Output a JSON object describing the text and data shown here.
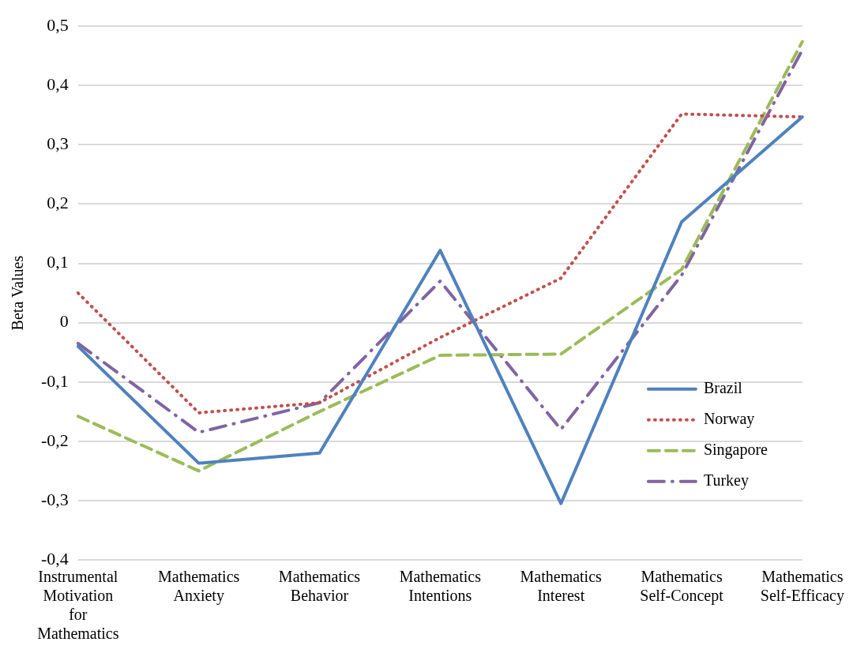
{
  "chart_data": {
    "type": "line",
    "ylabel": "Beta Values",
    "categories": [
      "Instrumental Motivation for Mathematics",
      "Mathematics Anxiety",
      "Mathematics Behavior",
      "Mathematics Intentions",
      "Mathematics Interest",
      "Mathematics Self-Concept",
      "Mathematics Self-Efficacy"
    ],
    "series": [
      {
        "name": "Brazil",
        "color": "#4f81bd",
        "line_style": "solid",
        "values": [
          -0.04,
          -0.237,
          -0.22,
          0.122,
          -0.305,
          0.17,
          0.347
        ]
      },
      {
        "name": "Norway",
        "color": "#c0504d",
        "line_style": "dotted",
        "values": [
          0.05,
          -0.152,
          -0.135,
          -0.025,
          0.075,
          0.352,
          0.347
        ]
      },
      {
        "name": "Singapore",
        "color": "#9bbb59",
        "line_style": "dashed",
        "values": [
          -0.158,
          -0.25,
          -0.15,
          -0.055,
          -0.053,
          0.09,
          0.474
        ]
      },
      {
        "name": "Turkey",
        "color": "#8064a2",
        "line_style": "dashdot",
        "values": [
          -0.035,
          -0.185,
          -0.135,
          0.07,
          -0.18,
          0.08,
          0.46
        ]
      }
    ],
    "ylim": [
      -0.4,
      0.5
    ],
    "yticks": [
      {
        "value": -0.4,
        "label": "-0,4"
      },
      {
        "value": -0.3,
        "label": "-0,3"
      },
      {
        "value": -0.2,
        "label": "-0,2"
      },
      {
        "value": -0.1,
        "label": "-0,1"
      },
      {
        "value": 0,
        "label": "0"
      },
      {
        "value": 0.1,
        "label": "0,1"
      },
      {
        "value": 0.2,
        "label": "0,2"
      },
      {
        "value": 0.3,
        "label": "0,3"
      },
      {
        "value": 0.4,
        "label": "0,4"
      },
      {
        "value": 0.5,
        "label": "0,5"
      }
    ],
    "grid": "y",
    "legend": "right",
    "marker": "none"
  }
}
